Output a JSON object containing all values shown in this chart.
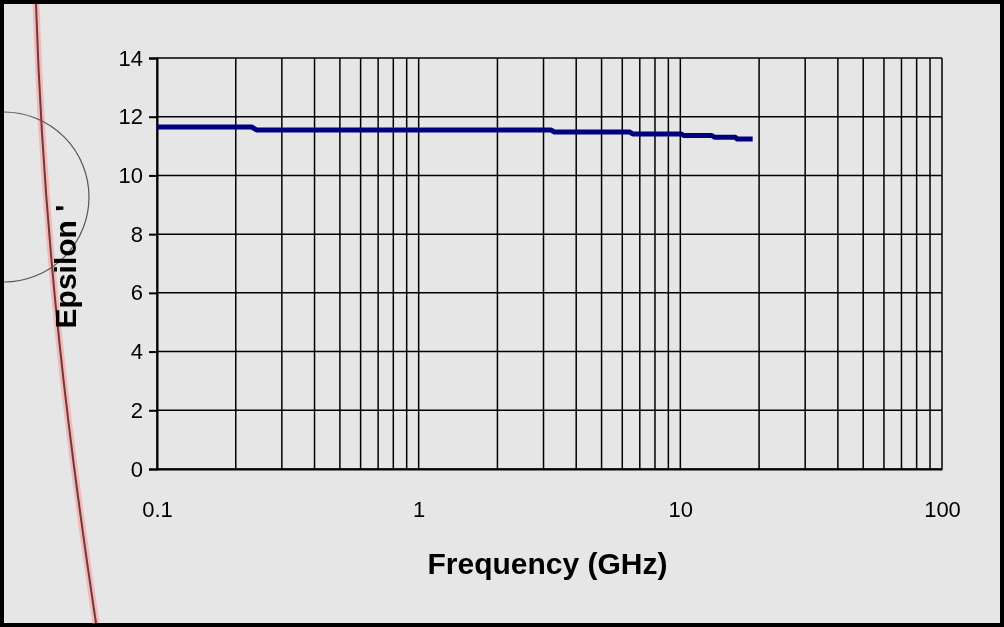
{
  "chart_data": {
    "type": "line",
    "xlabel": "Frequency (GHz)",
    "ylabel": "Epsilon '",
    "log": "x",
    "grid": true,
    "marker": "none",
    "line_style": "solid",
    "xlim": [
      0.1,
      100
    ],
    "ylim": [
      0,
      14
    ],
    "xticks": [
      0.1,
      {
        "value": 0.2,
        "label": null
      },
      {
        "value": 0.3,
        "label": null
      },
      {
        "value": 0.4,
        "label": null
      },
      {
        "value": 0.5,
        "label": null
      },
      {
        "value": 0.6,
        "label": null
      },
      {
        "value": 0.7,
        "label": null
      },
      {
        "value": 0.8,
        "label": null
      },
      {
        "value": 0.9,
        "label": null
      },
      1,
      {
        "value": 2,
        "label": null
      },
      {
        "value": 3,
        "label": null
      },
      {
        "value": 4,
        "label": null
      },
      {
        "value": 5,
        "label": null
      },
      {
        "value": 6,
        "label": null
      },
      {
        "value": 7,
        "label": null
      },
      {
        "value": 8,
        "label": null
      },
      {
        "value": 9,
        "label": null
      },
      10,
      {
        "value": 20,
        "label": null
      },
      {
        "value": 30,
        "label": null
      },
      {
        "value": 40,
        "label": null
      },
      {
        "value": 50,
        "label": null
      },
      {
        "value": 60,
        "label": null
      },
      {
        "value": 70,
        "label": null
      },
      {
        "value": 80,
        "label": null
      },
      {
        "value": 90,
        "label": null
      },
      100
    ],
    "yticks": [
      0,
      2,
      4,
      6,
      8,
      10,
      12,
      14
    ],
    "series": [
      {
        "color": "#000080",
        "x": [
          0.1,
          0.23,
          0.24,
          3.2,
          3.3,
          6.4,
          6.6,
          10.1,
          10.3,
          13.2,
          13.5,
          16.2,
          16.5,
          18.9
        ],
        "values": [
          11.65,
          11.65,
          11.55,
          11.55,
          11.48,
          11.48,
          11.41,
          11.41,
          11.36,
          11.36,
          11.3,
          11.3,
          11.24,
          11.24
        ]
      }
    ]
  }
}
